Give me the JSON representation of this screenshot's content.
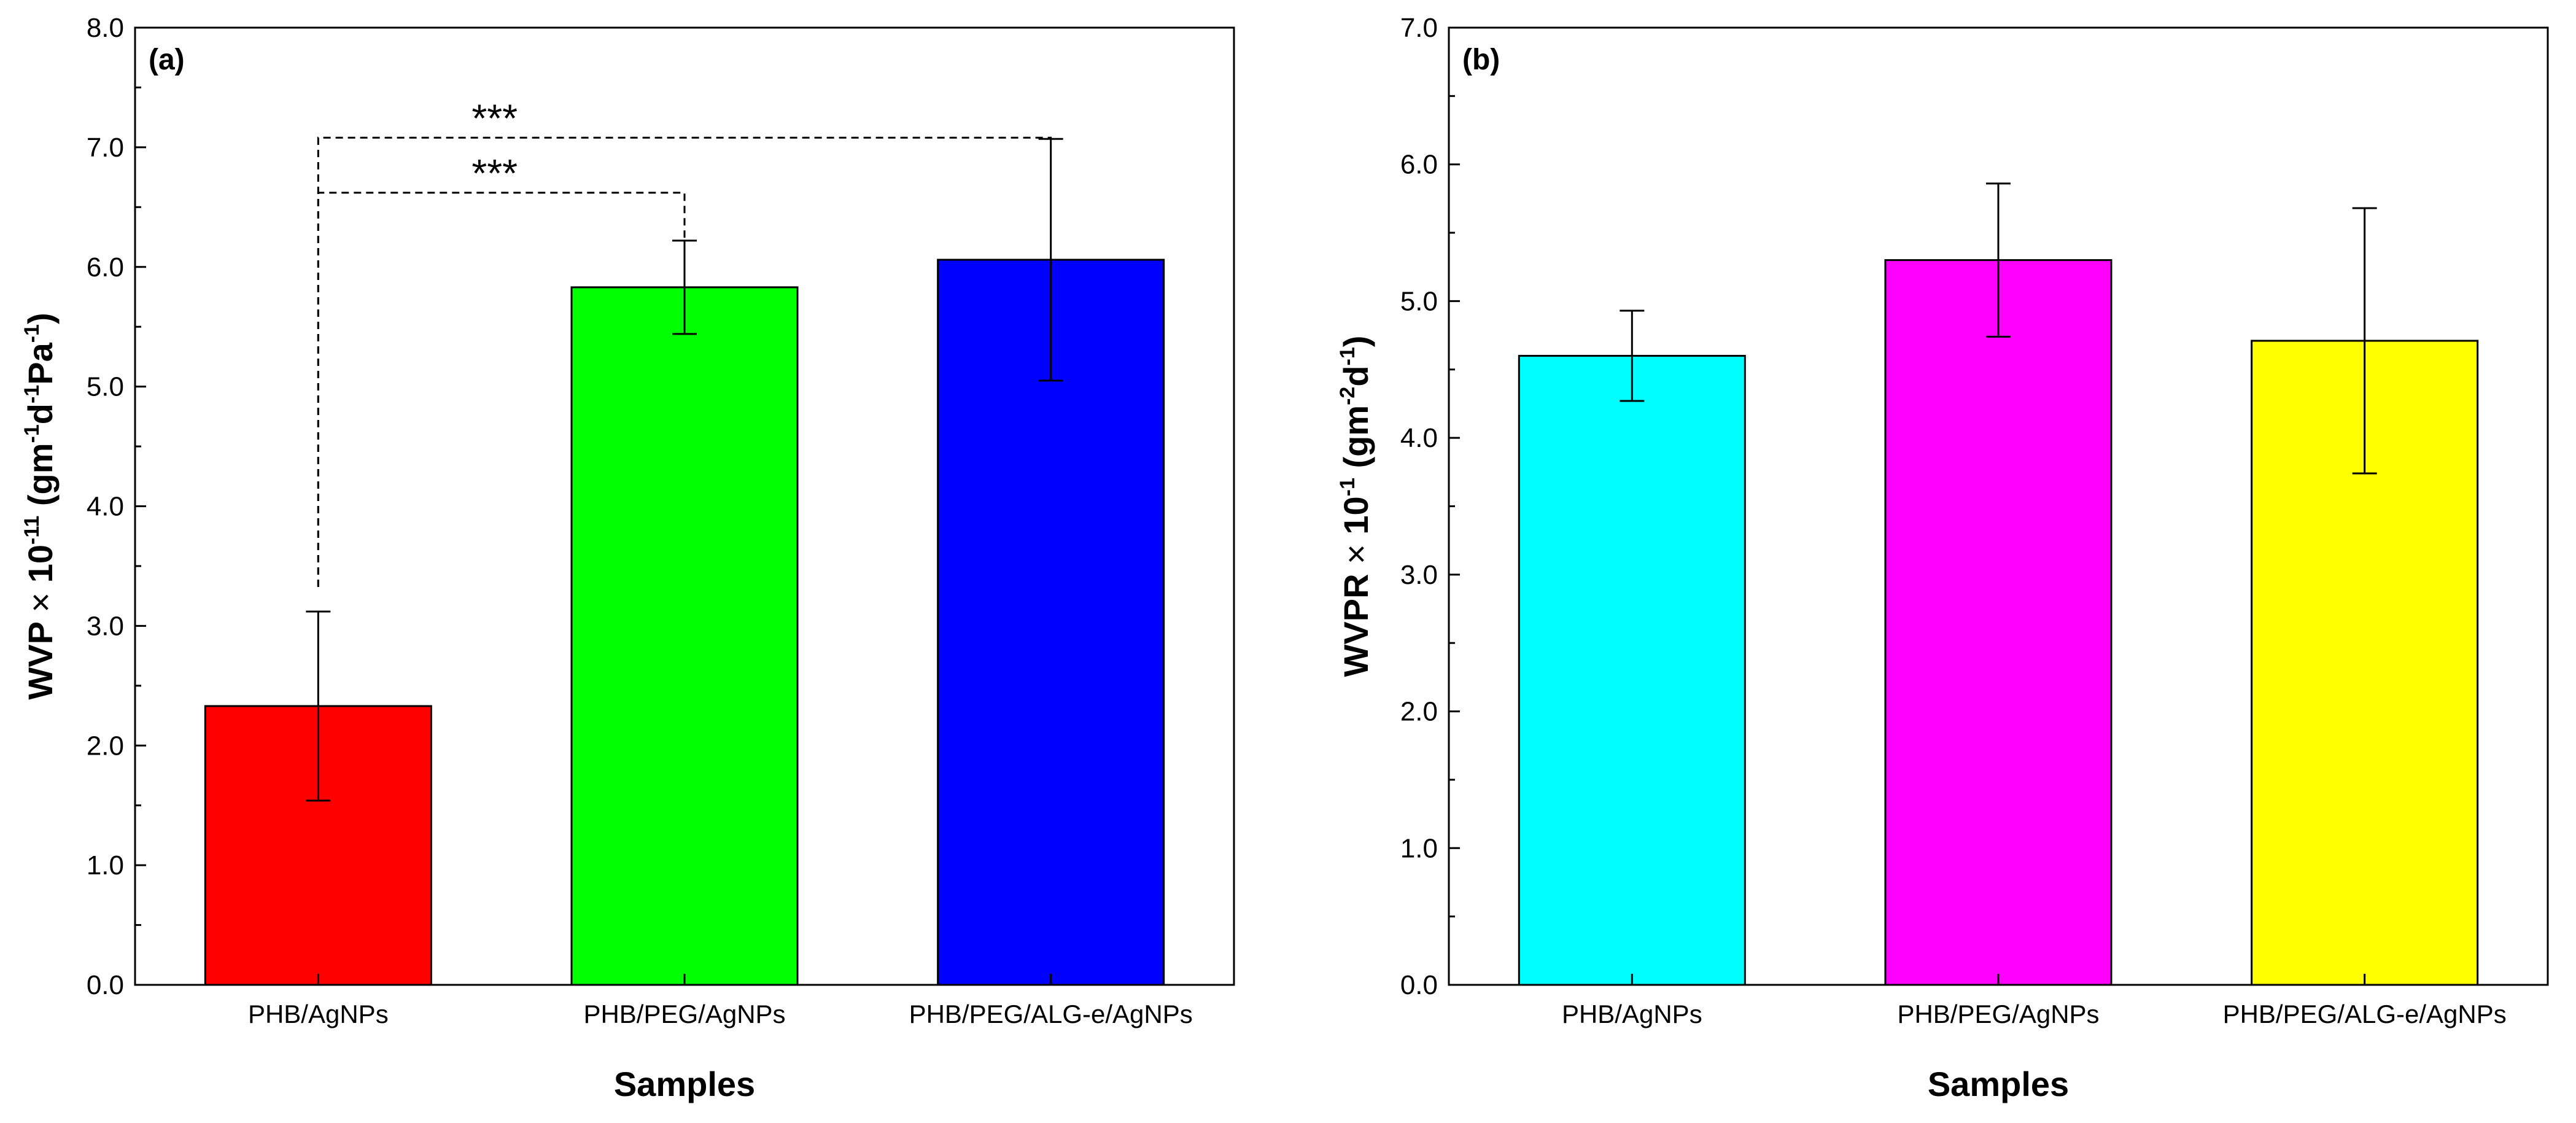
{
  "colors": {
    "phb_agnps_a": "#FF0000",
    "phb_peg_agnps_a": "#00FF00",
    "phb_peg_alg_agnps_a": "#0000FF",
    "phb_agnps_b": "#00FFFF",
    "phb_peg_agnps_b": "#FF00FF",
    "phb_peg_alg_agnps_b": "#FFFF00"
  },
  "chart_data": [
    {
      "type": "bar",
      "panel_label": "(a)",
      "categories": [
        "PHB/AgNPs",
        "PHB/PEG/AgNPs",
        "PHB/PEG/ALG-e/AgNPs"
      ],
      "values": [
        2.33,
        5.83,
        6.06
      ],
      "errors": [
        0.79,
        0.39,
        1.01
      ],
      "bar_colors": [
        "#FF0000",
        "#00FF00",
        "#0000FF"
      ],
      "xlabel": "Samples",
      "ylabel": {
        "prefix": "WVP",
        "times": "×",
        "base": "10",
        "exp": "-11",
        "unit_open": "(gm",
        "unit_exp1": "-1",
        "unit_mid1": "d",
        "unit_exp2": "-1",
        "unit_mid2": "Pa",
        "unit_exp3": "-1",
        "unit_close": ")"
      },
      "ylim": [
        0,
        8
      ],
      "yticks": [
        0,
        1,
        2,
        3,
        4,
        5,
        6,
        7,
        8
      ],
      "ytick_labels": [
        "0.0",
        "1.0",
        "2.0",
        "3.0",
        "4.0",
        "5.0",
        "6.0",
        "7.0",
        "8.0"
      ],
      "significance": [
        {
          "from": 0,
          "to": 1,
          "label": "***",
          "level": 6.62
        },
        {
          "from": 0,
          "to": 2,
          "label": "***",
          "level": 7.08
        }
      ]
    },
    {
      "type": "bar",
      "panel_label": "(b)",
      "categories": [
        "PHB/AgNPs",
        "PHB/PEG/AgNPs",
        "PHB/PEG/ALG-e/AgNPs"
      ],
      "values": [
        4.6,
        5.3,
        4.71
      ],
      "errors": [
        0.33,
        0.56,
        0.97
      ],
      "bar_colors": [
        "#00FFFF",
        "#FF00FF",
        "#FFFF00"
      ],
      "xlabel": "Samples",
      "ylabel": {
        "prefix": "WVPR",
        "times": "×",
        "base": "10",
        "exp": "-1",
        "unit_open": "(gm",
        "unit_exp1": "-2",
        "unit_mid1": "d",
        "unit_exp2": "-1",
        "unit_close": ")"
      },
      "ylim": [
        0,
        7
      ],
      "yticks": [
        0,
        1,
        2,
        3,
        4,
        5,
        6,
        7
      ],
      "ytick_labels": [
        "0.0",
        "1.0",
        "2.0",
        "3.0",
        "4.0",
        "5.0",
        "6.0",
        "7.0"
      ],
      "significance": []
    }
  ]
}
